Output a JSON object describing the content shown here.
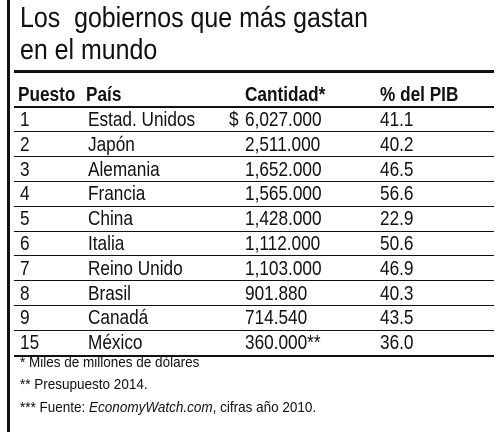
{
  "header": {
    "title_lines": [
      "Los  gobiernos que más gastan",
      "en el mundo"
    ]
  },
  "table": {
    "columns": [
      "Puesto",
      "País",
      "Cantidad*",
      "% del PIB"
    ],
    "rows": [
      [
        "1",
        "Estad. Unidos",
        "$",
        "6,027.000",
        "41.1"
      ],
      [
        "2",
        "Japón",
        "",
        "2,511.000",
        "40.2"
      ],
      [
        "3",
        "Alemania",
        "",
        "1,652.000",
        "46.5"
      ],
      [
        "4",
        "Francia",
        "",
        "1,565.000",
        "56.6"
      ],
      [
        "5",
        "China",
        "",
        "1,428.000",
        "22.9"
      ],
      [
        "6",
        "Italia",
        "",
        "1,112.000",
        "50.6"
      ],
      [
        "7",
        "Reino Unido",
        "",
        "1,103.000",
        "46.9"
      ],
      [
        "8",
        "Brasil",
        "",
        "901.880",
        "40.3"
      ],
      [
        "9",
        "Canadá",
        "",
        "714.540",
        "43.5"
      ],
      [
        "15",
        "México",
        "",
        "360.000**",
        "36.0"
      ]
    ]
  },
  "footnotes": {
    "note1": "* Miles de millones de dólares",
    "note2": "** Presupuesto 2014.",
    "note3": {
      "prefix": "*** Fuente: ",
      "source": "EconomyWatch.com",
      "suffix": ", cifras año 2010."
    }
  }
}
